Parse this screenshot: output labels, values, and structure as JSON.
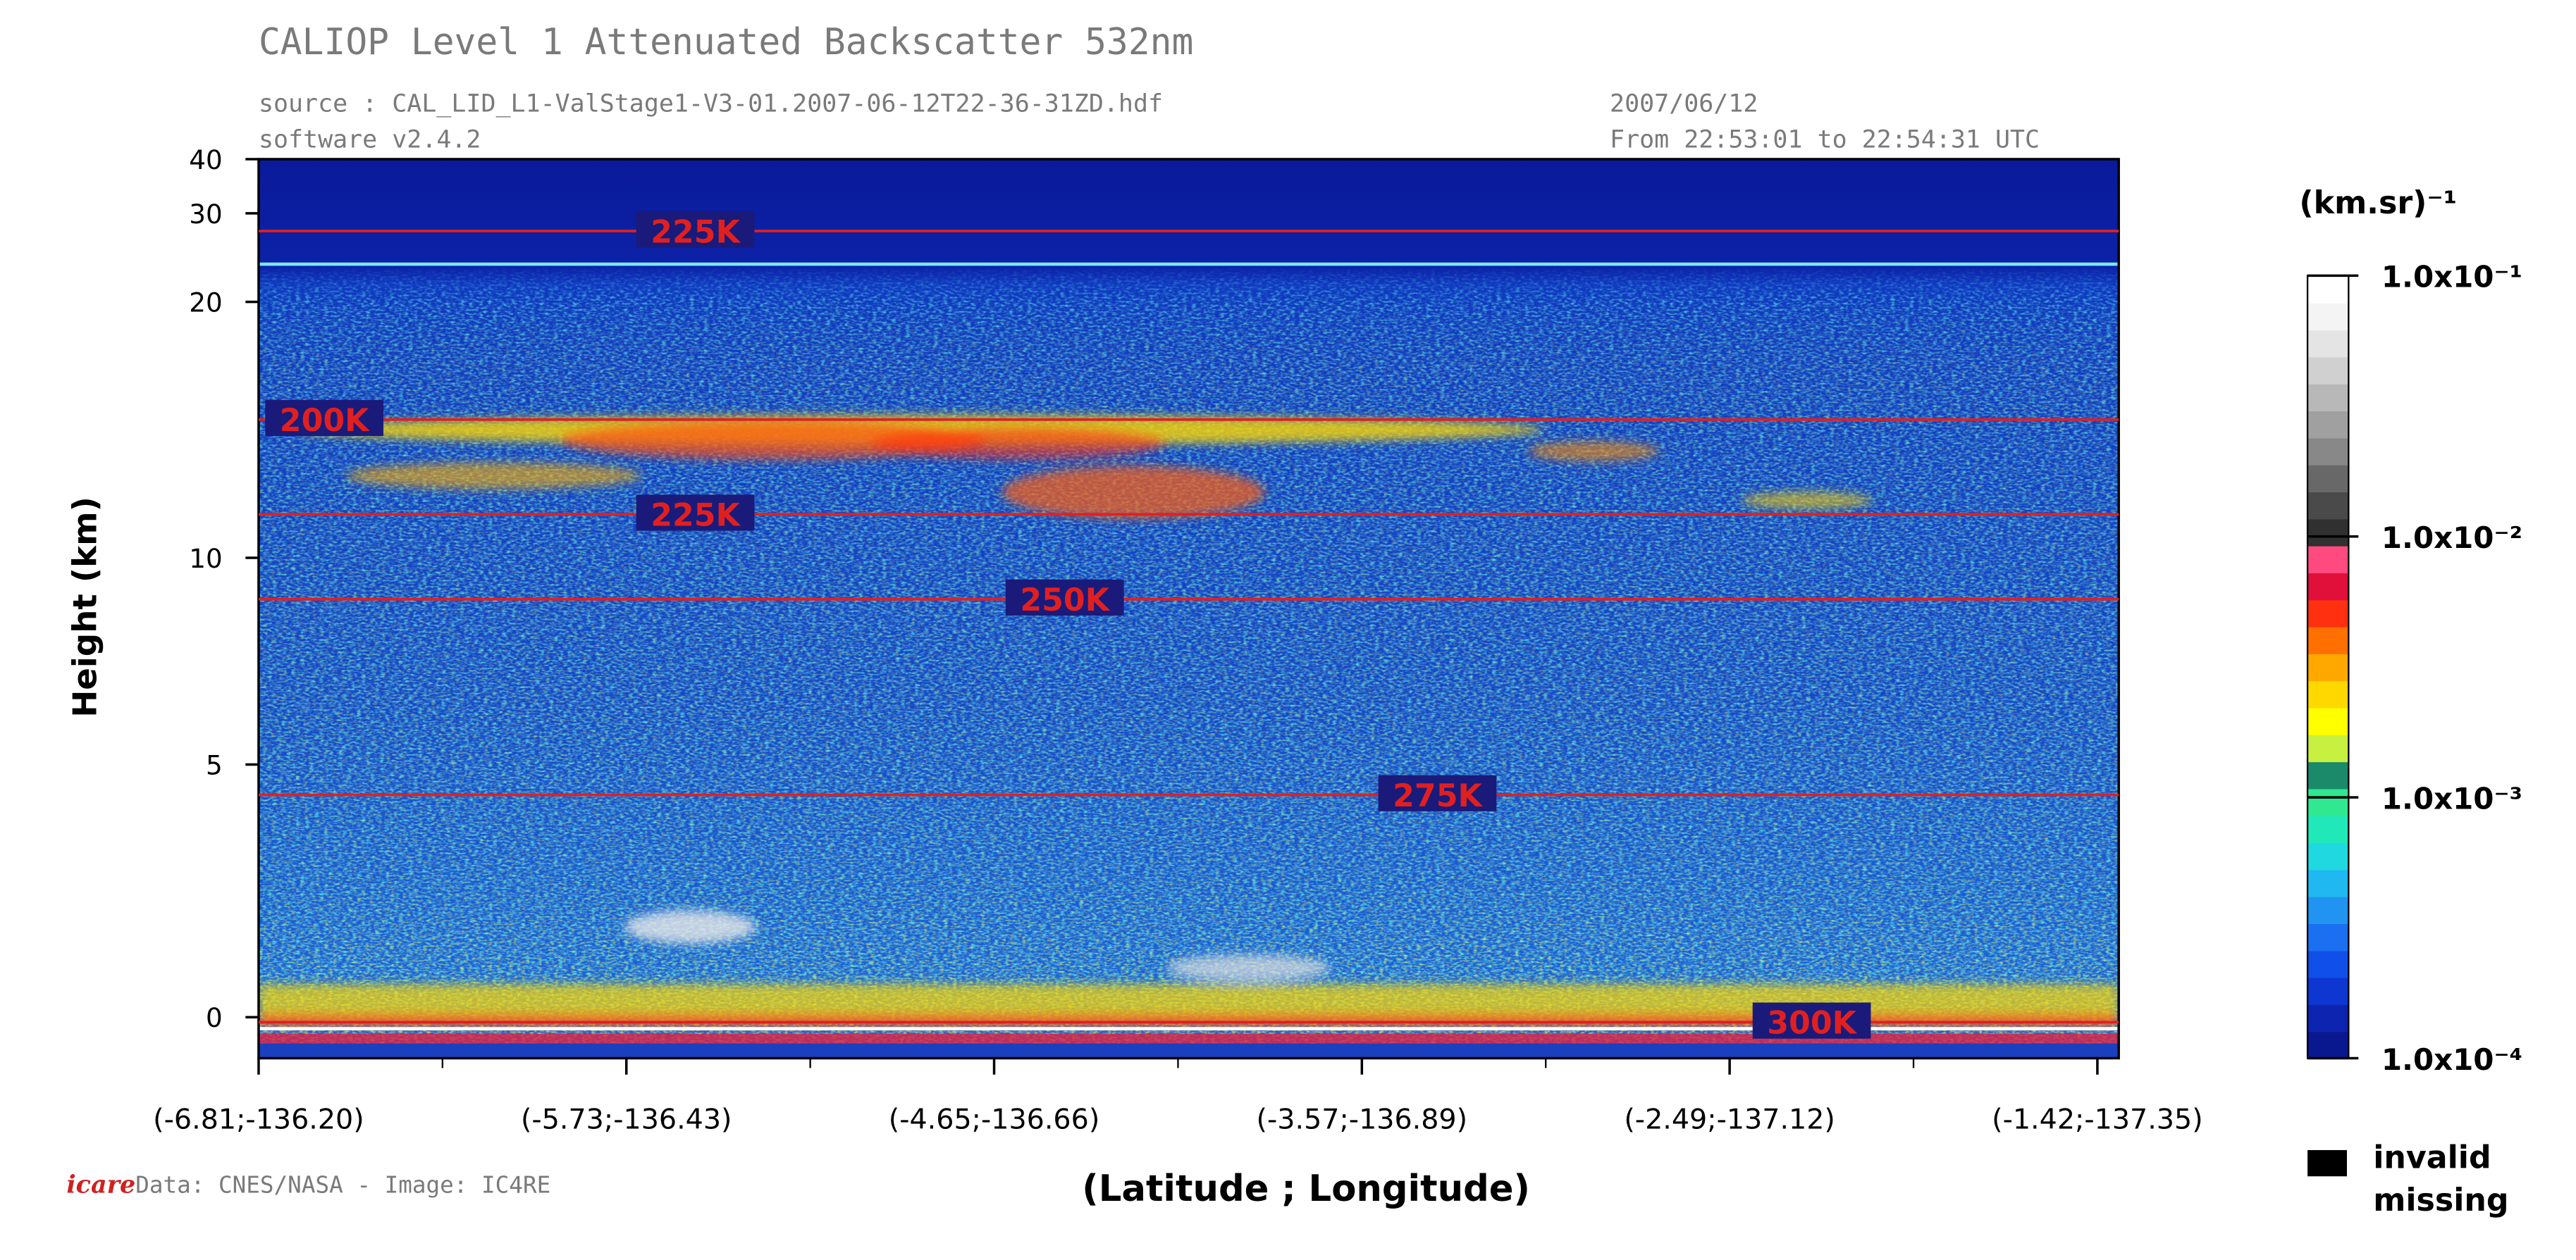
{
  "chart_data": {
    "type": "heatmap",
    "title": "CALIOP Level 1 Attenuated Backscatter 532nm",
    "source": "source : CAL_LID_L1-ValStage1-V3-01.2007-06-12T22-36-31ZD.hdf",
    "software": "software v2.4.2",
    "date": "2007/06/12",
    "time_range": "From 22:53:01 to 22:54:31 UTC",
    "ylabel": "Height (km)",
    "xlabel": "(Latitude ; Longitude)",
    "categories": [
      "(-6.81;-136.20)",
      "(-5.73;-136.43)",
      "(-4.65;-136.66)",
      "(-3.57;-136.89)",
      "(-2.49;-137.12)",
      "(-1.42;-137.35)"
    ],
    "ylim": [
      -0.8,
      40
    ],
    "yticks": [
      0,
      5,
      10,
      20,
      30,
      40
    ],
    "isotherms": [
      {
        "label": "225K",
        "height": 28
      },
      {
        "label": "200K",
        "height": 15.4
      },
      {
        "label": "225K",
        "height": 11.7
      },
      {
        "label": "250K",
        "height": 9
      },
      {
        "label": "275K",
        "height": 4.4
      },
      {
        "label": "300K",
        "height": -0.1
      }
    ],
    "isotherm_color": "#e02020",
    "colorbar": {
      "title": "(km.sr)⁻¹",
      "scale": "log",
      "lim": [
        0.0001,
        0.1
      ],
      "ticks": [
        {
          "value": 0.1,
          "label": "1.0x10⁻¹"
        },
        {
          "value": 0.01,
          "label": "1.0x10⁻²"
        },
        {
          "value": 0.001,
          "label": "1.0x10⁻³"
        },
        {
          "value": 0.0001,
          "label": "1.0x10⁻⁴"
        }
      ],
      "colors": [
        "#0a1890",
        "#0c24b0",
        "#0e36d0",
        "#1050e8",
        "#1a70f0",
        "#2094f0",
        "#20b8f0",
        "#20d8e0",
        "#20e8b8",
        "#30e890",
        "#1a8a6a",
        "#c8f040",
        "#ffff00",
        "#ffd800",
        "#ffa800",
        "#ff7000",
        "#ff3010",
        "#e0103a",
        "#ff4a80",
        "#303030",
        "#4a4a4a",
        "#686868",
        "#888888",
        "#a0a0a0",
        "#b8b8b8",
        "#d0d0d0",
        "#e4e4e4",
        "#f4f4f4",
        "#ffffff"
      ]
    },
    "legend": {
      "color": "#000000",
      "labels": [
        "invalid",
        "missing"
      ]
    },
    "credit": "Data: CNES/NASA - Image: IC4RE",
    "logo": "icare"
  }
}
